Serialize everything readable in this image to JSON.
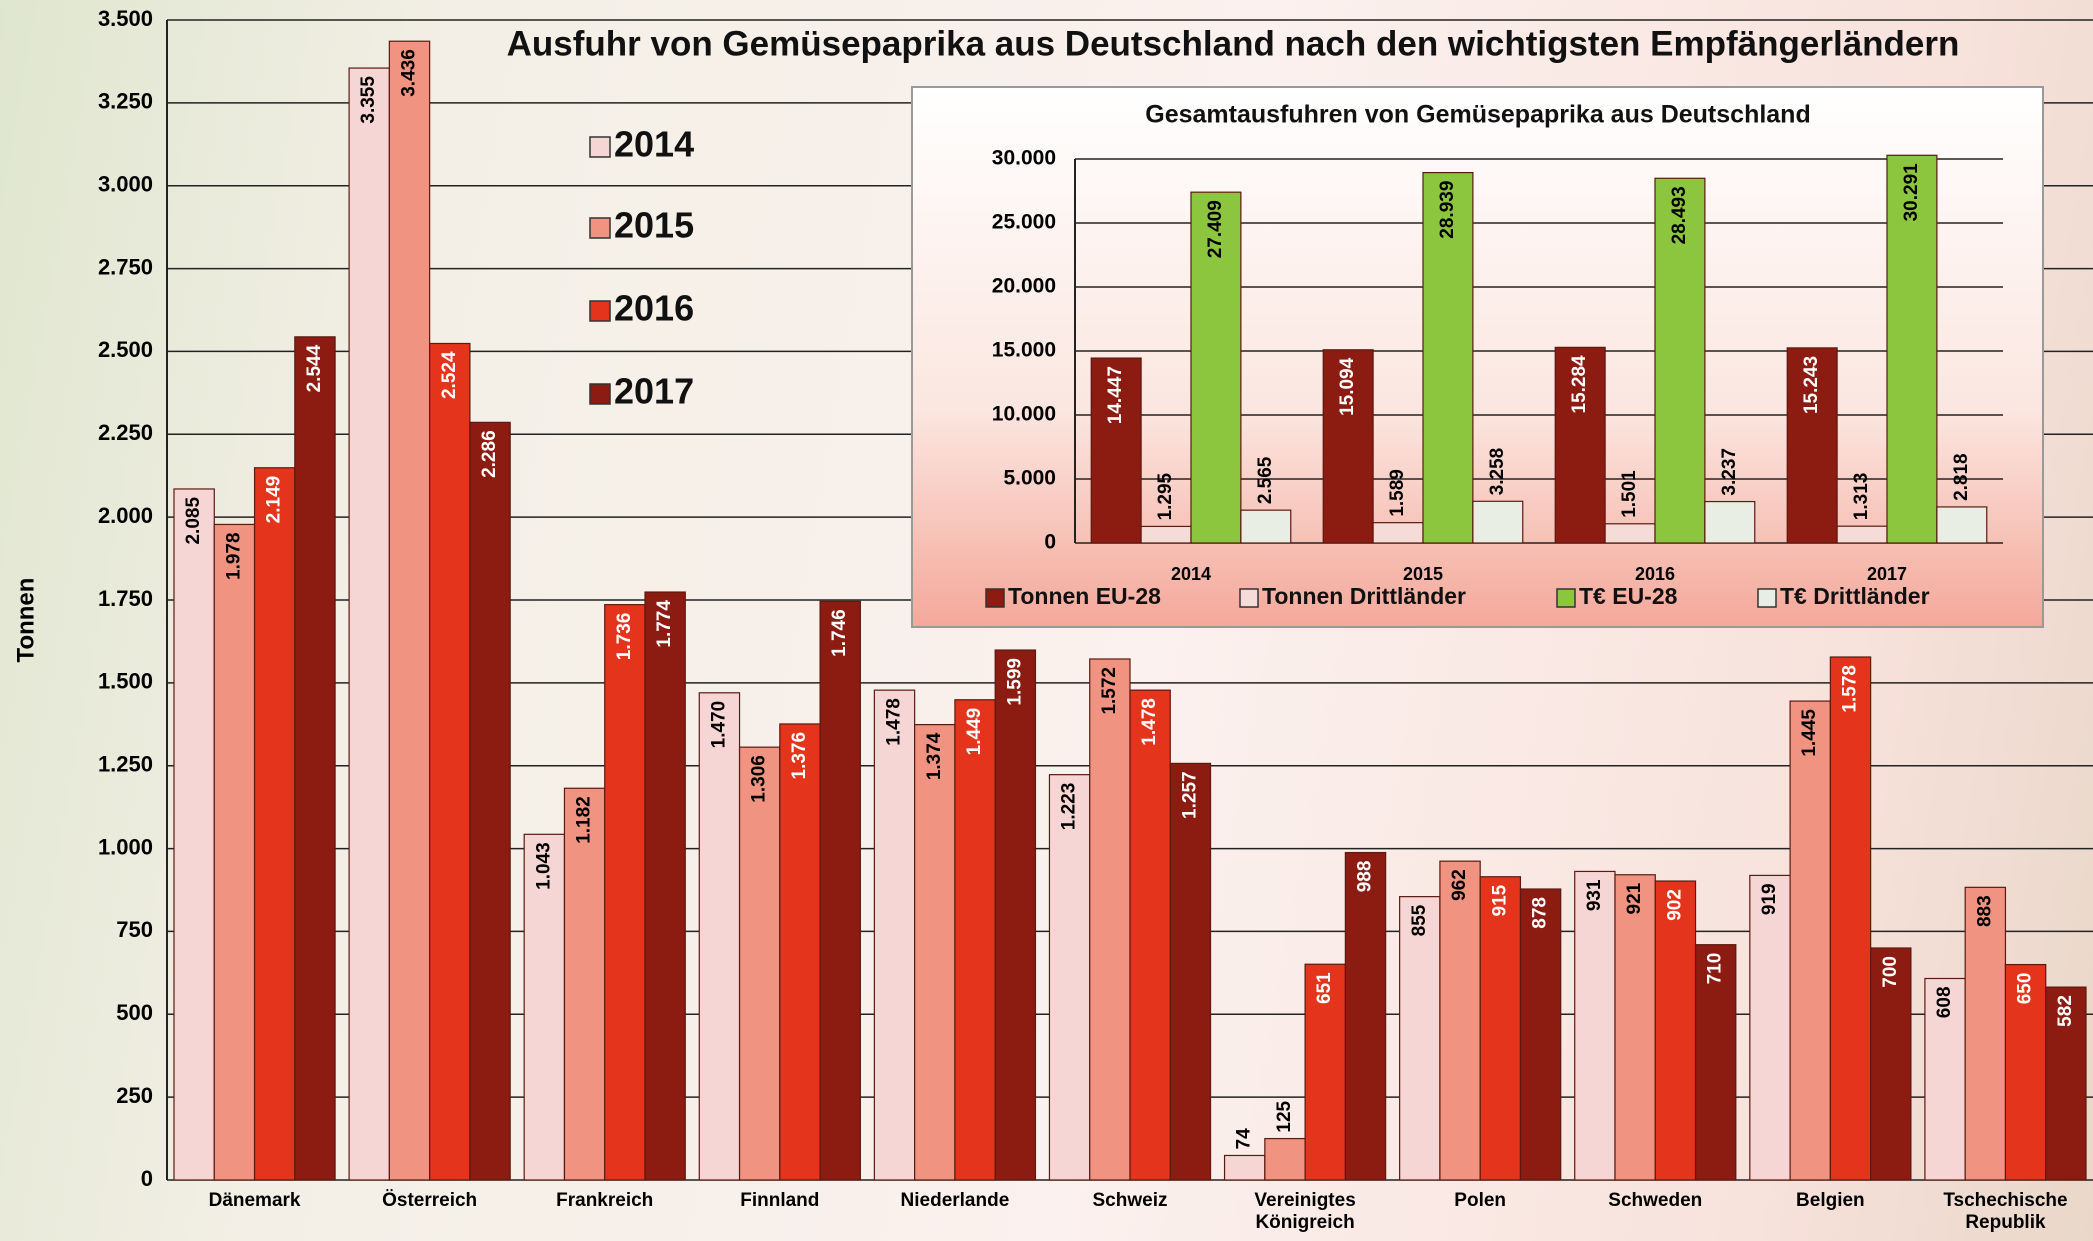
{
  "chart_data": [
    {
      "type": "bar",
      "title": "Ausfuhr von Gemüsepaprika aus Deutschland nach den wichtigsten Empfängerländern",
      "y_label": "Tonnen",
      "categories": [
        "Dänemark",
        "Österreich",
        "Frankreich",
        "Finnland",
        "Niederlande",
        "Schweiz",
        "Vereinigtes Königreich",
        "Polen",
        "Schweden",
        "Belgien",
        "Tschechische Republik"
      ],
      "series": [
        {
          "name": "2014",
          "color": "#f6d6d4",
          "values": [
            2085,
            3355,
            1043,
            1470,
            1478,
            1223,
            74,
            855,
            931,
            919,
            608
          ],
          "value_labels": [
            "2.085",
            "3.355",
            "1.043",
            "1.470",
            "1.478",
            "1.223",
            "74",
            "855",
            "931",
            "919",
            "608"
          ]
        },
        {
          "name": "2015",
          "color": "#f09380",
          "values": [
            1978,
            3436,
            1182,
            1306,
            1374,
            1572,
            125,
            962,
            921,
            1445,
            883
          ],
          "value_labels": [
            "1.978",
            "3.436",
            "1.182",
            "1.306",
            "1.374",
            "1.572",
            "125",
            "962",
            "921",
            "1.445",
            "883"
          ]
        },
        {
          "name": "2016",
          "color": "#e5341c",
          "values": [
            2149,
            2524,
            1736,
            1376,
            1449,
            1478,
            651,
            915,
            902,
            1578,
            650
          ],
          "value_labels": [
            "2.149",
            "2.524",
            "1.736",
            "1.376",
            "1.449",
            "1.478",
            "651",
            "915",
            "902",
            "1.578",
            "650"
          ]
        },
        {
          "name": "2017",
          "color": "#8c1b12",
          "values": [
            2544,
            2286,
            1774,
            1746,
            1599,
            1257,
            988,
            878,
            710,
            700,
            582
          ],
          "value_labels": [
            "2.544",
            "2.286",
            "1.774",
            "1.746",
            "1.599",
            "1.257",
            "988",
            "878",
            "710",
            "700",
            "582"
          ]
        }
      ],
      "ylim": [
        0,
        3500
      ],
      "yticks": [
        0,
        250,
        500,
        750,
        {
          "value": 1000,
          "label": "1.000"
        },
        {
          "value": 1250,
          "label": "1.250"
        },
        {
          "value": 1500,
          "label": "1.500"
        },
        {
          "value": 1750,
          "label": "1.750"
        },
        {
          "value": 2000,
          "label": "2.000"
        },
        {
          "value": 2250,
          "label": "2.250"
        },
        {
          "value": 2500,
          "label": "2.500"
        },
        {
          "value": 2750,
          "label": "2.750"
        },
        {
          "value": 3000,
          "label": "3.000"
        },
        {
          "value": 3250,
          "label": "3.250"
        },
        {
          "value": 3500,
          "label": "3.500"
        }
      ],
      "grid": true
    },
    {
      "type": "bar",
      "title": "Gesamtausfuhren von Gemüsepaprika aus Deutschland",
      "categories": [
        "2014",
        "2015",
        "2016",
        "2017"
      ],
      "series": [
        {
          "name": "Tonnen EU-28",
          "color": "#8c1b12",
          "values": [
            14447,
            15094,
            15284,
            15243
          ],
          "value_labels": [
            "14.447",
            "15.094",
            "15.284",
            "15.243"
          ]
        },
        {
          "name": "Tonnen Drittländer",
          "color": "#f6dcd8",
          "values": [
            1295,
            1589,
            1501,
            1313
          ],
          "value_labels": [
            "1.295",
            "1.589",
            "1.501",
            "1.313"
          ]
        },
        {
          "name": "T€ EU-28",
          "color": "#8cc63f",
          "values": [
            27409,
            28939,
            28493,
            30291
          ],
          "value_labels": [
            "27.409",
            "28.939",
            "28.493",
            "30.291"
          ]
        },
        {
          "name": "T€ Drittländer",
          "color": "#e8eee4",
          "values": [
            2565,
            3258,
            3237,
            2818
          ],
          "value_labels": [
            "2.565",
            "3.258",
            "3.237",
            "2.818"
          ]
        }
      ],
      "ylim": [
        0,
        30000
      ],
      "yticks": [
        0,
        {
          "value": 5000,
          "label": "5.000"
        },
        {
          "value": 10000,
          "label": "10.000"
        },
        {
          "value": 15000,
          "label": "15.000"
        },
        {
          "value": 20000,
          "label": "20.000"
        },
        {
          "value": 25000,
          "label": "25.000"
        },
        {
          "value": 30000,
          "label": "30.000"
        }
      ],
      "grid": true
    }
  ]
}
